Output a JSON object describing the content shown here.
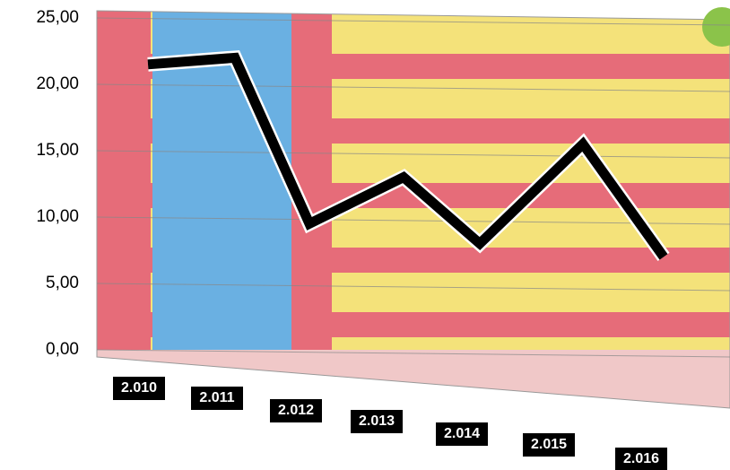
{
  "chart_data": {
    "type": "line",
    "categories": [
      "2.010",
      "2.011",
      "2.012",
      "2.013",
      "2.014",
      "2.015",
      "2.016"
    ],
    "values": [
      21.5,
      22,
      9.5,
      13,
      8,
      15.5,
      7
    ],
    "color": "#000000",
    "ylim": [
      0,
      25
    ],
    "yticks": [
      {
        "value": 0,
        "label": "0,00"
      },
      {
        "value": 5,
        "label": "5,00"
      },
      {
        "value": 10,
        "label": "10,00"
      },
      {
        "value": 15,
        "label": "15,00"
      },
      {
        "value": 20,
        "label": "20,00"
      },
      {
        "value": 25,
        "label": "25,00"
      }
    ],
    "grid": true
  }
}
